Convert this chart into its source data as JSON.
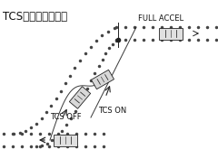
{
  "title": "TCS走行実験模式図",
  "label_tcs_off": "TCS OFF",
  "label_tcs_on": "TCS ON",
  "label_full_accel": "FULL ACCEL",
  "bg_color": "#ffffff",
  "dot_color": "#444444",
  "line_color": "#222222",
  "title_fontsize": 8.5,
  "label_fontsize": 6.0,
  "figw": 2.4,
  "figh": 1.76,
  "dpi": 100
}
